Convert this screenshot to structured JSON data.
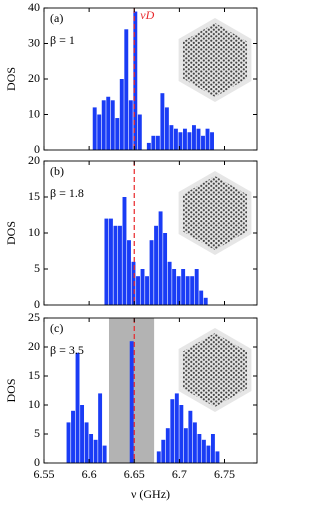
{
  "chart_data": [
    {
      "type": "histogram",
      "panel_label": "(a)",
      "annotation": "β = 1",
      "ylabel": "DOS",
      "vline": 6.65,
      "vline_label": "νD",
      "color": "#1a3cf5",
      "vline_color": "#e8262a",
      "xlim": [
        6.55,
        6.786
      ],
      "xticks": [
        6.55,
        6.6,
        6.65,
        6.7,
        6.75
      ],
      "ylim": [
        0,
        40
      ],
      "yticks": [
        0,
        10,
        20,
        30,
        40
      ],
      "bins": [
        6.604,
        6.609,
        6.614,
        6.619,
        6.624,
        6.629,
        6.634,
        6.639,
        6.644,
        6.649,
        6.654,
        6.659,
        6.664,
        6.669,
        6.674,
        6.679,
        6.684,
        6.689,
        6.694,
        6.699,
        6.704,
        6.709,
        6.714,
        6.719,
        6.724,
        6.729,
        6.734,
        6.739
      ],
      "values": [
        12,
        10,
        14,
        15,
        14,
        9,
        20,
        34,
        14,
        39,
        10,
        0,
        2,
        4,
        4,
        16,
        12,
        7,
        6,
        5,
        6,
        5,
        7,
        6,
        4,
        6,
        5
      ]
    },
    {
      "type": "histogram",
      "panel_label": "(b)",
      "annotation": "β = 1.8",
      "ylabel": "DOS",
      "vline": 6.65,
      "color": "#1a3cf5",
      "vline_color": "#e8262a",
      "xlim": [
        6.55,
        6.786
      ],
      "xticks": [
        6.55,
        6.6,
        6.65,
        6.7,
        6.75
      ],
      "ylim": [
        0,
        20
      ],
      "yticks": [
        0,
        5,
        10,
        15,
        20
      ],
      "bins": [
        6.617,
        6.622,
        6.627,
        6.632,
        6.637,
        6.642,
        6.647,
        6.652,
        6.657,
        6.662,
        6.667,
        6.672,
        6.677,
        6.682,
        6.687,
        6.692,
        6.697,
        6.702,
        6.707,
        6.712,
        6.717,
        6.722,
        6.727,
        6.732
      ],
      "values": [
        12,
        12,
        11,
        11,
        15,
        9,
        6,
        4,
        5,
        4,
        9,
        11,
        13,
        10,
        6,
        5,
        4,
        5,
        4,
        4,
        5,
        2,
        1
      ]
    },
    {
      "type": "histogram",
      "panel_label": "(c)",
      "annotation": "β = 3.5",
      "ylabel": "DOS",
      "xlabel": "ν (GHz)",
      "vline": 6.65,
      "span": [
        6.622,
        6.672
      ],
      "span_color": "#b3b3b3",
      "color": "#1a3cf5",
      "vline_color": "#e8262a",
      "xlim": [
        6.55,
        6.786
      ],
      "xticks": [
        6.55,
        6.6,
        6.65,
        6.7,
        6.75
      ],
      "ylim": [
        0,
        25
      ],
      "yticks": [
        0,
        5,
        10,
        15,
        20,
        25
      ],
      "bins": [
        6.575,
        6.58,
        6.585,
        6.59,
        6.595,
        6.6,
        6.605,
        6.61,
        6.615,
        6.62,
        6.625,
        6.63,
        6.635,
        6.64,
        6.645,
        6.65,
        6.655,
        6.66,
        6.665,
        6.67,
        6.675,
        6.68,
        6.685,
        6.69,
        6.695,
        6.7,
        6.705,
        6.71,
        6.715,
        6.72,
        6.725,
        6.73,
        6.735,
        6.74,
        6.745
      ],
      "values": [
        7,
        9,
        19,
        10,
        7,
        5,
        4,
        12,
        3,
        0,
        0,
        0,
        0,
        0,
        21,
        0,
        0,
        0,
        0,
        0,
        2,
        4,
        6,
        11,
        12,
        10,
        6,
        9,
        7,
        5,
        4,
        3,
        5,
        2
      ]
    }
  ]
}
